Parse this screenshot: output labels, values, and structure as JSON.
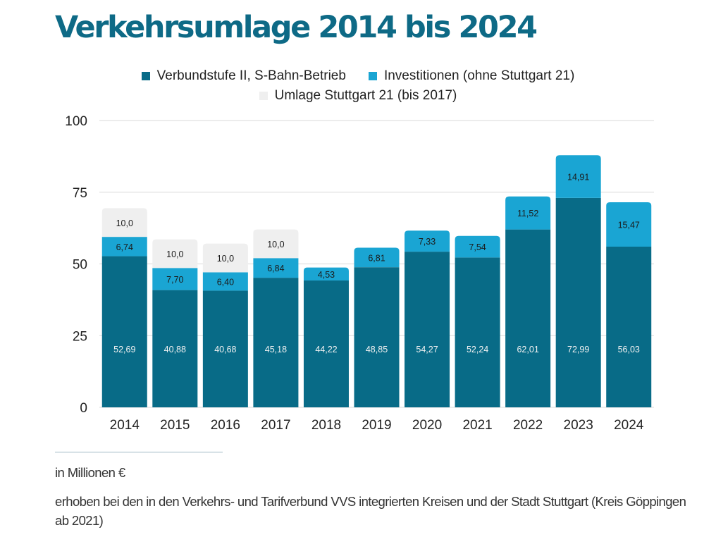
{
  "title": "Verkehrsumlage 2014 bis 2024",
  "colors": {
    "verbund": "#086b87",
    "invest": "#1aa5d3",
    "s21": "#efefef",
    "grid": "#d9d9d9",
    "title": "#0e6a86"
  },
  "chart_data": {
    "type": "bar",
    "stacked": true,
    "title": "Verkehrsumlage 2014 bis 2024",
    "xlabel": "",
    "ylabel": "",
    "ylim": [
      0,
      100
    ],
    "yticks": [
      "0",
      "25",
      "50",
      "75",
      "100"
    ],
    "grid": true,
    "legend_position": "top",
    "categories": [
      "2014",
      "2015",
      "2016",
      "2017",
      "2018",
      "2019",
      "2020",
      "2021",
      "2022",
      "2023",
      "2024"
    ],
    "series": [
      {
        "name": "Verbundstufe II, S-Bahn-Betrieb",
        "color": "#086b87",
        "label_color": "#f2f2f2",
        "values": [
          52.69,
          40.88,
          40.68,
          45.18,
          44.22,
          48.85,
          54.27,
          52.24,
          62.01,
          72.99,
          56.03
        ],
        "labels": [
          "52,69",
          "40,88",
          "40,68",
          "45,18",
          "44,22",
          "48,85",
          "54,27",
          "52,24",
          "62,01",
          "72,99",
          "56,03"
        ]
      },
      {
        "name": "Investitionen (ohne Stuttgart 21)",
        "color": "#1aa5d3",
        "label_color": "#1b1b1b",
        "values": [
          6.74,
          7.7,
          6.4,
          6.84,
          4.53,
          6.81,
          7.33,
          7.54,
          11.52,
          14.91,
          15.47
        ],
        "labels": [
          "6,74",
          "7,70",
          "6,40",
          "6,84",
          "4,53",
          "6,81",
          "7,33",
          "7,54",
          "11,52",
          "14,91",
          "15,47"
        ]
      },
      {
        "name": "Umlage Stuttgart 21 (bis 2017)",
        "color": "#efefef",
        "label_color": "#1b1b1b",
        "values": [
          10.0,
          10.0,
          10.0,
          10.0,
          0,
          0,
          0,
          0,
          0,
          0,
          0
        ],
        "labels": [
          "10,0",
          "10,0",
          "10,0",
          "10,0",
          "",
          "",
          "",
          "",
          "",
          "",
          ""
        ]
      }
    ]
  },
  "notes": {
    "unit": "in Millionen €",
    "scope": "erhoben bei den in den Verkehrs- und Tarifverbund VVS integrierten Kreisen und der Stadt Stuttgart (Kreis Göppingen ab 2021)"
  }
}
